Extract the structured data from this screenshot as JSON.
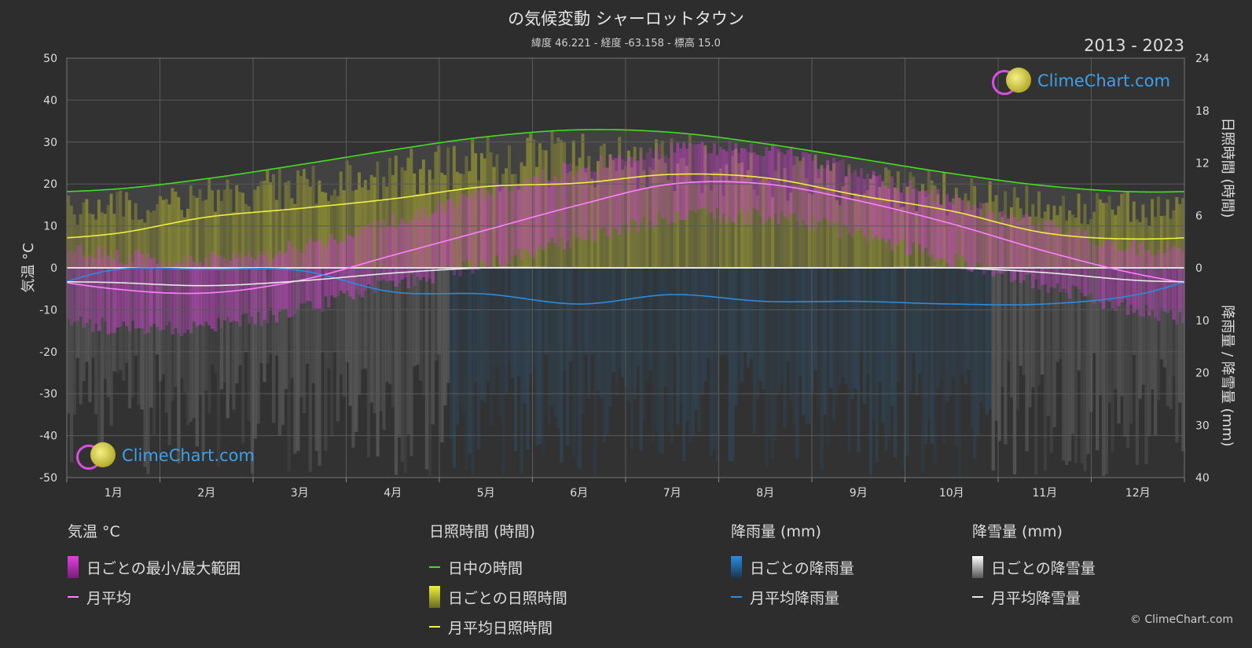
{
  "header": {
    "title": "の気候変動 シャーロットタウン",
    "subtitle": "緯度 46.221 - 経度 -63.158 - 標高 15.0",
    "years": "2013 - 2023"
  },
  "logo": {
    "text": "ClimeChart.com"
  },
  "copyright": "© ClimeChart.com",
  "legend": {
    "temperature": {
      "heading": "気温 °C",
      "range": "日ごとの最小/最大範囲",
      "mean": "月平均"
    },
    "sunshine": {
      "heading": "日照時間 (時間)",
      "daylight": "日中の時間",
      "daily": "日ごとの日照時間",
      "mean": "月平均日照時間"
    },
    "rain": {
      "heading": "降雨量 (mm)",
      "daily": "日ごとの降雨量",
      "mean": "月平均降雨量"
    },
    "snow": {
      "heading": "降雪量 (mm)",
      "daily": "日ごとの降雪量",
      "mean": "月平均降雪量"
    }
  },
  "colors": {
    "daylight": "#44dd22",
    "sunshine_mean": "#f0f040",
    "temp_mean": "#ff80ff",
    "rain_mean": "#2a8ce0",
    "snow_mean": "#e8e8e8",
    "temp_range": "#d040d0",
    "sunshine_fill": "#a8a830"
  },
  "chart_data": {
    "type": "line",
    "categories": [
      "1月",
      "2月",
      "3月",
      "4月",
      "5月",
      "6月",
      "7月",
      "8月",
      "9月",
      "10月",
      "11月",
      "12月"
    ],
    "left_axis": {
      "label": "気温 °C",
      "ticks": [
        50,
        40,
        30,
        20,
        10,
        0,
        -10,
        -20,
        -30,
        -40,
        -50
      ],
      "range": [
        -50,
        50
      ]
    },
    "right_axis_top": {
      "label": "日照時間 (時間)",
      "ticks": [
        24,
        18,
        12,
        6,
        0
      ],
      "range": [
        0,
        24
      ]
    },
    "right_axis_bottom": {
      "label": "降雨量 / 降雪量 (mm)",
      "ticks": [
        10,
        20,
        30,
        40
      ],
      "range": [
        0,
        40
      ]
    },
    "series": [
      {
        "name": "日中の時間",
        "axis": "sunshine",
        "values": [
          9.0,
          10.2,
          11.8,
          13.5,
          15.0,
          15.8,
          15.5,
          14.2,
          12.5,
          10.8,
          9.4,
          8.7
        ]
      },
      {
        "name": "月平均日照時間",
        "axis": "sunshine",
        "values": [
          3.9,
          5.8,
          6.8,
          7.9,
          9.3,
          9.7,
          10.7,
          10.3,
          8.3,
          6.5,
          4.0,
          3.3
        ]
      },
      {
        "name": "月平均",
        "axis": "temperature",
        "values": [
          -5.0,
          -6.0,
          -3.0,
          3.0,
          9.0,
          15.0,
          20.0,
          20.0,
          16.0,
          10.5,
          4.0,
          -1.5
        ]
      },
      {
        "name": "月平均降雨量",
        "axis": "precip",
        "values": [
          0.4,
          0.3,
          0.5,
          4.6,
          5.0,
          6.9,
          5.1,
          6.4,
          6.4,
          6.9,
          6.9,
          5.1
        ]
      },
      {
        "name": "月平均降雪量",
        "axis": "precip",
        "values": [
          2.8,
          3.4,
          2.5,
          1.0,
          0.0,
          0.0,
          0.0,
          0.0,
          0.0,
          0.0,
          0.9,
          2.4
        ]
      }
    ],
    "temperature_range": {
      "min": [
        -12,
        -12,
        -8,
        -2,
        3,
        9,
        14,
        14,
        10,
        4,
        -2,
        -8
      ],
      "max": [
        1,
        0,
        3,
        9,
        16,
        22,
        26,
        26,
        21,
        14,
        8,
        3
      ]
    },
    "grid": true
  }
}
